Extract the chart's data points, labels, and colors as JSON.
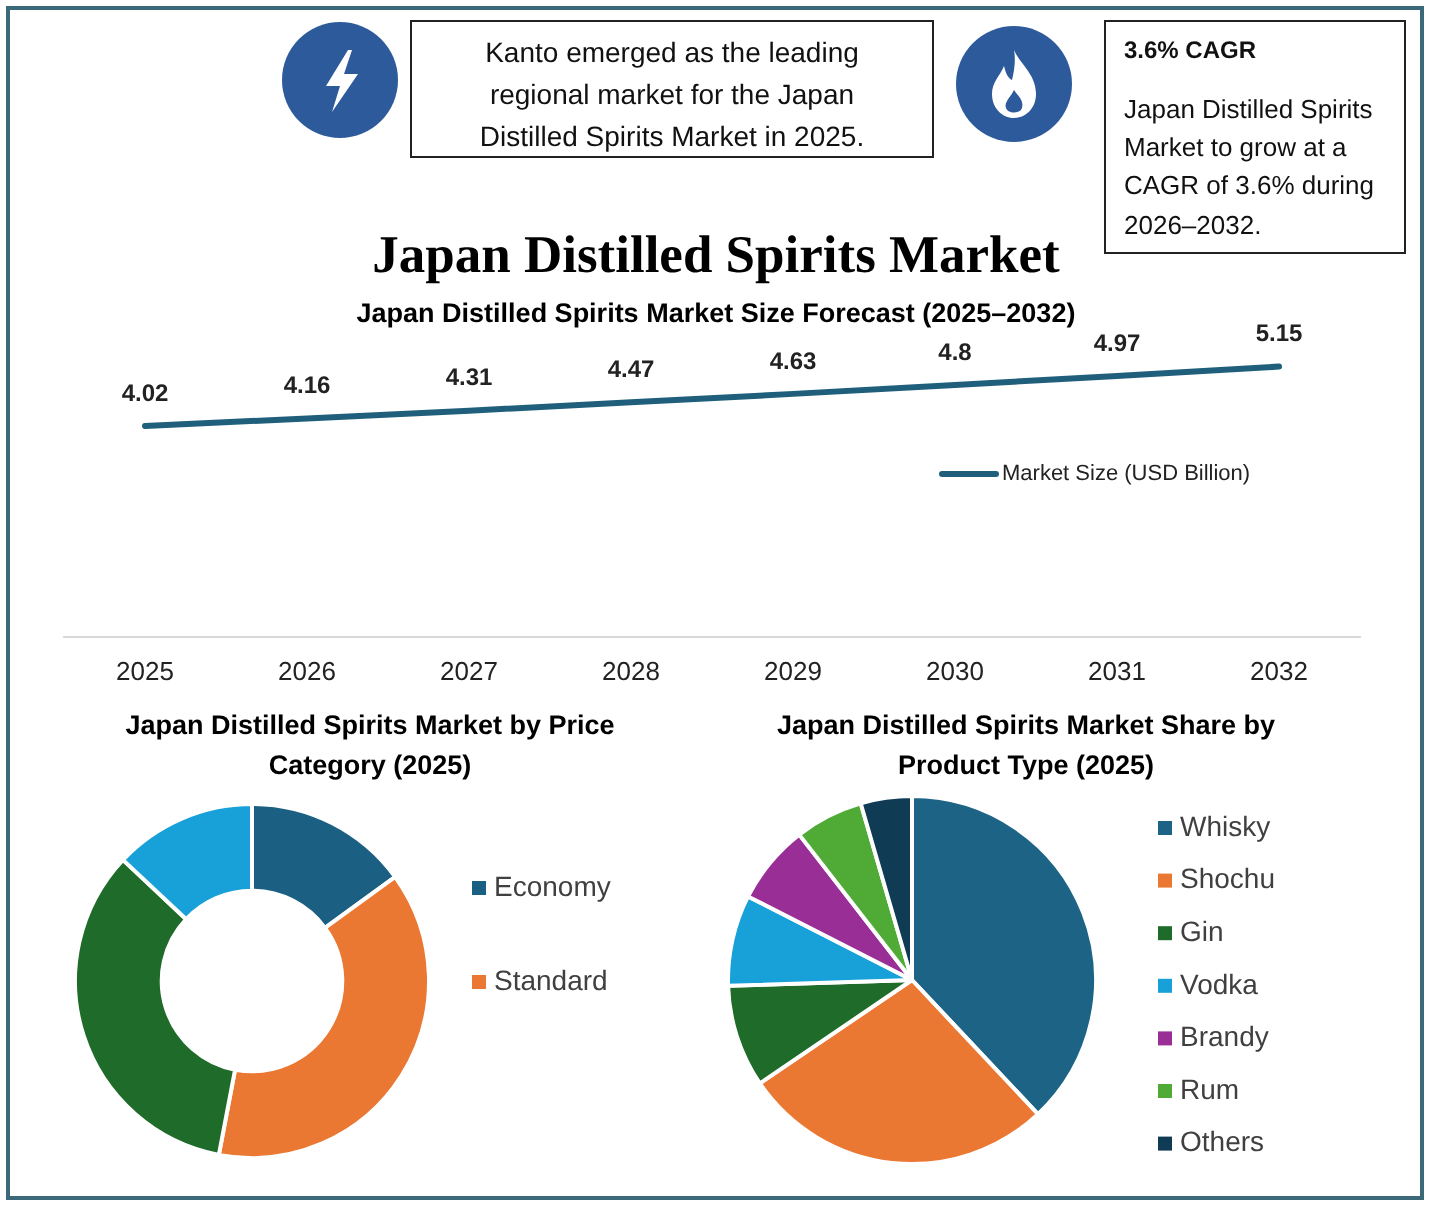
{
  "chart_data": [
    {
      "type": "other",
      "title": "Japan Distilled Spirits Market",
      "annotations": [
        "Kanto emerged as the leading regional market for the Japan Distilled Spirits Market in 2025.",
        "3.6% CAGR",
        "Japan Distilled Spirits Market to grow at a CAGR of 3.6% during 2026–2032."
      ]
    },
    {
      "type": "line",
      "title": "Japan Distilled Spirits Market Size Forecast (2025–2032)",
      "categories": [
        "2025",
        "2026",
        "2027",
        "2028",
        "2029",
        "2030",
        "2031",
        "2032"
      ],
      "series": [
        {
          "name": "Market Size (USD Billion)",
          "color": "#1f5f7b",
          "values": [
            4.02,
            4.16,
            4.31,
            4.47,
            4.63,
            4.8,
            4.97,
            5.15
          ]
        }
      ],
      "tick_labels": "x",
      "data_labels": true,
      "legend": "right"
    },
    {
      "type": "donut",
      "title": "Japan Distilled Spirits Market by Price Category (2025)",
      "categories": [
        "Economy",
        "Standard",
        null,
        null
      ],
      "values": [
        15,
        38,
        34,
        13
      ],
      "colors": [
        "#1b5f82",
        "#ea7732",
        "#1e6b2a",
        "#18a0d8"
      ],
      "legend": "right"
    },
    {
      "type": "pie",
      "title": "Japan Distilled Spirits Market Share by Product Type (2025)",
      "categories": [
        "Whisky",
        "Shochu",
        "Gin",
        "Vodka",
        "Brandy",
        "Rum",
        "Others"
      ],
      "values": [
        38,
        27.5,
        9,
        8,
        7,
        6,
        4.5
      ],
      "colors": [
        "#1c6386",
        "#ea7732",
        "#1e6b2a",
        "#18a0d8",
        "#992e97",
        "#4fab35",
        "#0f3b54"
      ],
      "legend": "right"
    }
  ]
}
